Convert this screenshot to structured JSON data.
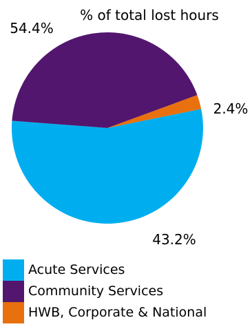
{
  "chart_data": {
    "type": "pie",
    "title": "% of total lost hours",
    "categories": [
      "Acute Services",
      "Community Services",
      "HWB, Corporate & National"
    ],
    "values": [
      54.4,
      43.2,
      2.4
    ],
    "labels": [
      "54.4%",
      "43.2%",
      "2.4%"
    ],
    "colors": [
      "#00aeef",
      "#53166e",
      "#e8700e"
    ],
    "legend_position": "bottom-left"
  }
}
